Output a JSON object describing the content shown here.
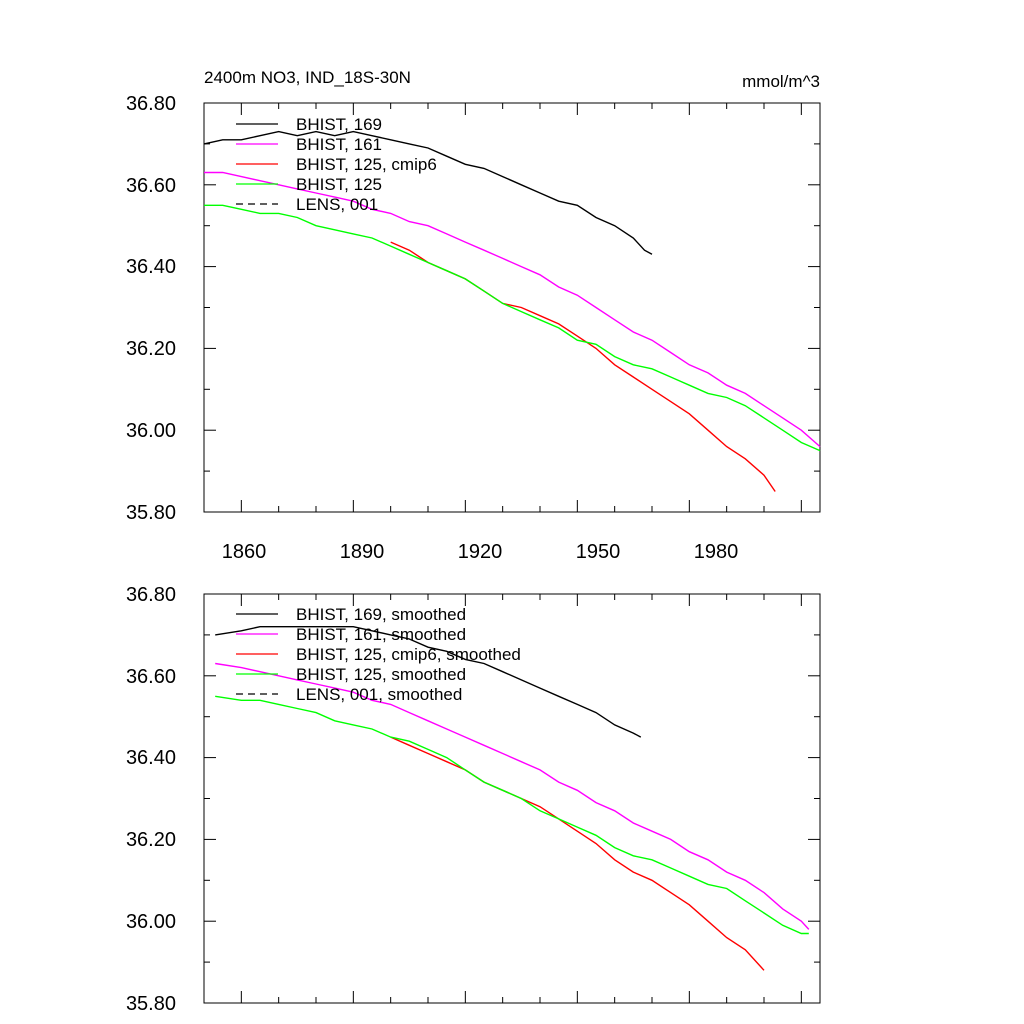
{
  "chart_data": [
    {
      "type": "line",
      "title": "2400m NO3, IND_18S-30N",
      "units": "mmol/m^3",
      "xlim": [
        1850,
        2015
      ],
      "ylim": [
        35.8,
        36.8
      ],
      "x_ticks": [
        1860,
        1890,
        1920,
        1950,
        1980
      ],
      "y_ticks": [
        "35.80",
        "36.00",
        "36.20",
        "36.40",
        "36.60",
        "36.80"
      ],
      "legend_position": "top-left",
      "grid": false,
      "series": [
        {
          "name": "BHIST, 169",
          "color": "#000000",
          "dash": "solid",
          "x": [
            1850,
            1855,
            1860,
            1865,
            1870,
            1875,
            1880,
            1885,
            1890,
            1895,
            1900,
            1905,
            1910,
            1915,
            1920,
            1925,
            1930,
            1935,
            1940,
            1945,
            1950,
            1955,
            1960,
            1965,
            1968,
            1970
          ],
          "y": [
            36.7,
            36.71,
            36.71,
            36.72,
            36.73,
            36.72,
            36.73,
            36.72,
            36.73,
            36.72,
            36.71,
            36.7,
            36.69,
            36.67,
            36.65,
            36.64,
            36.62,
            36.6,
            36.58,
            36.56,
            36.55,
            36.52,
            36.5,
            36.47,
            36.44,
            36.43
          ]
        },
        {
          "name": "BHIST, 161",
          "color": "#ff00ff",
          "dash": "solid",
          "x": [
            1850,
            1855,
            1860,
            1865,
            1870,
            1875,
            1880,
            1885,
            1890,
            1895,
            1900,
            1905,
            1910,
            1915,
            1920,
            1925,
            1930,
            1935,
            1940,
            1945,
            1950,
            1955,
            1960,
            1965,
            1970,
            1975,
            1980,
            1985,
            1990,
            1995,
            2000,
            2005,
            2010,
            2015
          ],
          "y": [
            36.63,
            36.63,
            36.62,
            36.61,
            36.6,
            36.59,
            36.58,
            36.57,
            36.56,
            36.54,
            36.53,
            36.51,
            36.5,
            36.48,
            36.46,
            36.44,
            36.42,
            36.4,
            36.38,
            36.35,
            36.33,
            36.3,
            36.27,
            36.24,
            36.22,
            36.19,
            36.16,
            36.14,
            36.11,
            36.09,
            36.06,
            36.03,
            36.0,
            35.96
          ]
        },
        {
          "name": "BHIST, 125, cmip6",
          "color": "#ff0000",
          "dash": "solid",
          "x": [
            1900,
            1905,
            1910,
            1915,
            1920,
            1925,
            1930,
            1935,
            1940,
            1945,
            1950,
            1955,
            1960,
            1965,
            1970,
            1975,
            1980,
            1985,
            1990,
            1995,
            2000,
            2003
          ],
          "y": [
            36.46,
            36.44,
            36.41,
            36.39,
            36.37,
            36.34,
            36.31,
            36.3,
            36.28,
            36.26,
            36.23,
            36.2,
            36.16,
            36.13,
            36.1,
            36.07,
            36.04,
            36.0,
            35.96,
            35.93,
            35.89,
            35.85
          ]
        },
        {
          "name": "BHIST, 125",
          "color": "#00ff00",
          "dash": "solid",
          "x": [
            1850,
            1855,
            1860,
            1865,
            1870,
            1875,
            1880,
            1885,
            1890,
            1895,
            1900,
            1905,
            1910,
            1915,
            1920,
            1925,
            1930,
            1935,
            1940,
            1945,
            1950,
            1955,
            1960,
            1965,
            1970,
            1975,
            1980,
            1985,
            1990,
            1995,
            2000,
            2005,
            2010,
            2015
          ],
          "y": [
            36.55,
            36.55,
            36.54,
            36.53,
            36.53,
            36.52,
            36.5,
            36.49,
            36.48,
            36.47,
            36.45,
            36.43,
            36.41,
            36.39,
            36.37,
            36.34,
            36.31,
            36.29,
            36.27,
            36.25,
            36.22,
            36.21,
            36.18,
            36.16,
            36.15,
            36.13,
            36.11,
            36.09,
            36.08,
            36.06,
            36.03,
            36.0,
            35.97,
            35.95
          ]
        },
        {
          "name": "LENS, 001",
          "color": "#000000",
          "dash": "dashed",
          "x": [],
          "y": []
        }
      ]
    },
    {
      "type": "line",
      "xlim": [
        1850,
        2015
      ],
      "ylim": [
        35.8,
        36.8
      ],
      "y_ticks": [
        "35.80",
        "36.00",
        "36.20",
        "36.40",
        "36.60",
        "36.80"
      ],
      "legend_position": "top-left",
      "grid": false,
      "series": [
        {
          "name": "BHIST, 169, smoothed",
          "color": "#000000",
          "dash": "solid",
          "x": [
            1853,
            1860,
            1865,
            1870,
            1875,
            1880,
            1885,
            1890,
            1895,
            1900,
            1905,
            1910,
            1915,
            1920,
            1925,
            1930,
            1935,
            1940,
            1945,
            1950,
            1955,
            1960,
            1965,
            1967
          ],
          "y": [
            36.7,
            36.71,
            36.72,
            36.72,
            36.72,
            36.72,
            36.72,
            36.72,
            36.71,
            36.7,
            36.69,
            36.67,
            36.66,
            36.64,
            36.63,
            36.61,
            36.59,
            36.57,
            36.55,
            36.53,
            36.51,
            36.48,
            36.46,
            36.45
          ]
        },
        {
          "name": "BHIST, 161, smoothed",
          "color": "#ff00ff",
          "dash": "solid",
          "x": [
            1853,
            1860,
            1865,
            1870,
            1875,
            1880,
            1885,
            1890,
            1895,
            1900,
            1905,
            1910,
            1915,
            1920,
            1925,
            1930,
            1935,
            1940,
            1945,
            1950,
            1955,
            1960,
            1965,
            1970,
            1975,
            1980,
            1985,
            1990,
            1995,
            2000,
            2005,
            2010,
            2012
          ],
          "y": [
            36.63,
            36.62,
            36.61,
            36.6,
            36.59,
            36.58,
            36.57,
            36.56,
            36.54,
            36.53,
            36.51,
            36.49,
            36.47,
            36.45,
            36.43,
            36.41,
            36.39,
            36.37,
            36.34,
            36.32,
            36.29,
            36.27,
            36.24,
            36.22,
            36.2,
            36.17,
            36.15,
            36.12,
            36.1,
            36.07,
            36.03,
            36.0,
            35.98
          ]
        },
        {
          "name": "BHIST, 125, cmip6, smoothed",
          "color": "#ff0000",
          "dash": "solid",
          "x": [
            1900,
            1905,
            1910,
            1915,
            1920,
            1925,
            1930,
            1935,
            1940,
            1945,
            1950,
            1955,
            1960,
            1965,
            1970,
            1975,
            1980,
            1985,
            1990,
            1995,
            2000
          ],
          "y": [
            36.45,
            36.43,
            36.41,
            36.39,
            36.37,
            36.34,
            36.32,
            36.3,
            36.28,
            36.25,
            36.22,
            36.19,
            36.15,
            36.12,
            36.1,
            36.07,
            36.04,
            36.0,
            35.96,
            35.93,
            35.88
          ]
        },
        {
          "name": "BHIST, 125, smoothed",
          "color": "#00ff00",
          "dash": "solid",
          "x": [
            1853,
            1860,
            1865,
            1870,
            1875,
            1880,
            1885,
            1890,
            1895,
            1900,
            1905,
            1910,
            1915,
            1920,
            1925,
            1930,
            1935,
            1940,
            1945,
            1950,
            1955,
            1960,
            1965,
            1970,
            1975,
            1980,
            1985,
            1990,
            1995,
            2000,
            2005,
            2010,
            2012
          ],
          "y": [
            36.55,
            36.54,
            36.54,
            36.53,
            36.52,
            36.51,
            36.49,
            36.48,
            36.47,
            36.45,
            36.44,
            36.42,
            36.4,
            36.37,
            36.34,
            36.32,
            36.3,
            36.27,
            36.25,
            36.23,
            36.21,
            36.18,
            36.16,
            36.15,
            36.13,
            36.11,
            36.09,
            36.08,
            36.05,
            36.02,
            35.99,
            35.97,
            35.97
          ]
        },
        {
          "name": "LENS, 001, smoothed",
          "color": "#000000",
          "dash": "dashed",
          "x": [],
          "y": []
        }
      ]
    }
  ]
}
